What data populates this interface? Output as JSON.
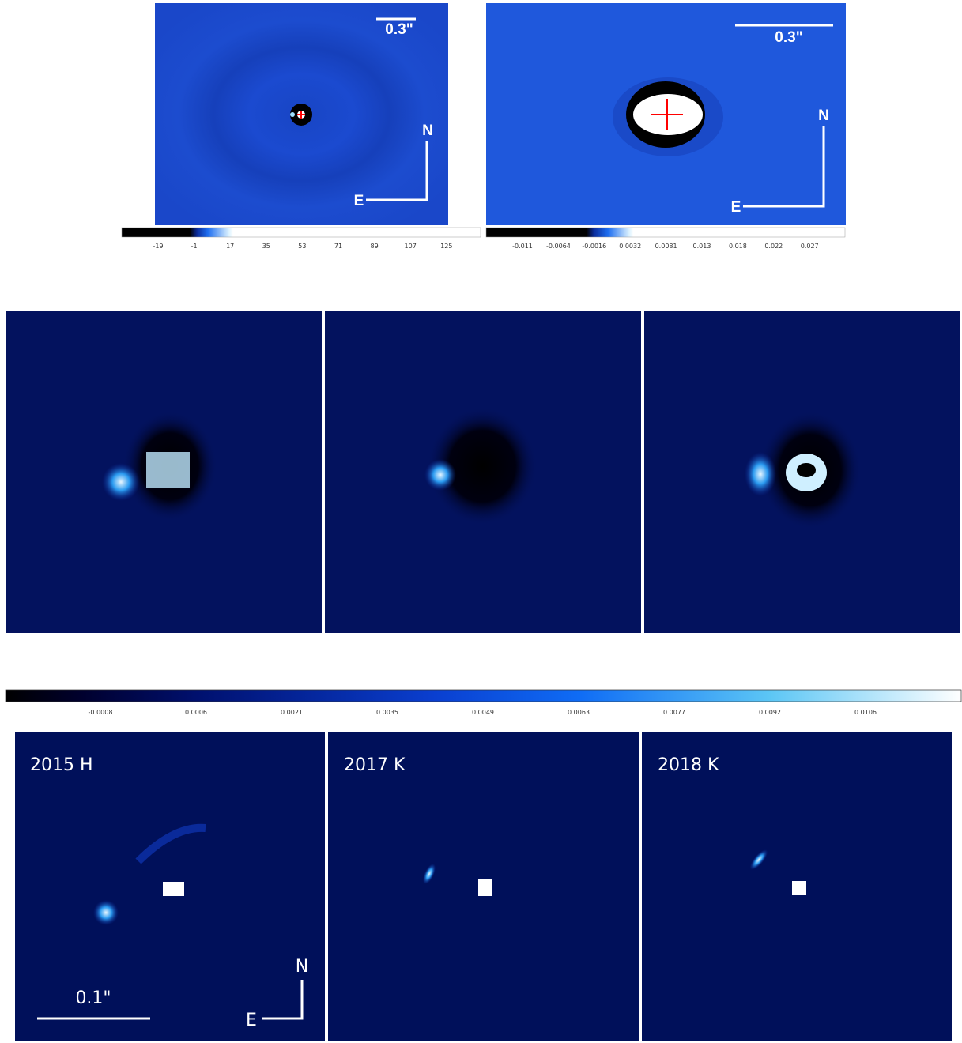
{
  "top_panels": [
    {
      "scale_label": "0.3\"",
      "north": "N",
      "east": "E",
      "colorbar_ticks": [
        "-19",
        "-1",
        "17",
        "35",
        "53",
        "71",
        "89",
        "107",
        "125"
      ]
    },
    {
      "scale_label": "0.3\"",
      "north": "N",
      "east": "E",
      "colorbar_ticks": [
        "-0.011",
        "-0.0064",
        "-0.0016",
        "0.0032",
        "0.0081",
        "0.013",
        "0.018",
        "0.022",
        "0.027"
      ]
    }
  ],
  "colorbar_ticks": [
    "-0.0008",
    "0.0006",
    "0.0021",
    "0.0035",
    "0.0049",
    "0.0063",
    "0.0077",
    "0.0092",
    "0.0106"
  ],
  "bottom_panels": [
    {
      "label": "2015 H"
    },
    {
      "label": "2017 K"
    },
    {
      "label": "2018 K"
    }
  ],
  "bottom_scale_label": "0.1\"",
  "bottom_north": "N",
  "bottom_east": "E"
}
